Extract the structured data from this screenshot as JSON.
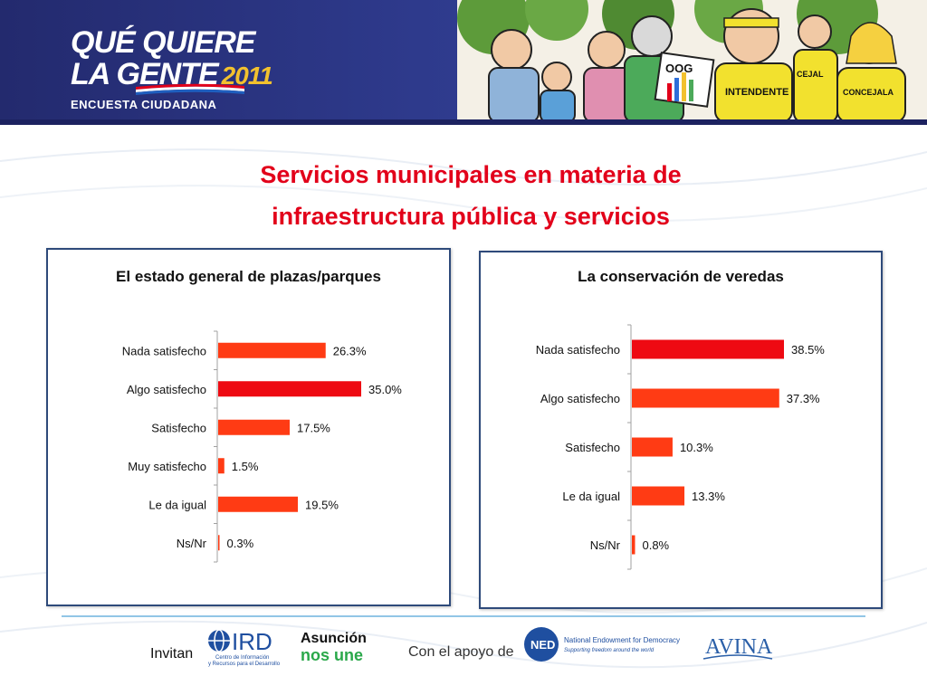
{
  "header": {
    "brand_line1": "QUÉ QUIERE",
    "brand_line2": "LA GENTE",
    "brand_year": "2011",
    "brand_sub": "ENCUESTA CIUDADANA",
    "cartoon_sign1": "OOG",
    "cartoon_sign2": "INTENDENTE",
    "cartoon_sign3": "CONCEJALA",
    "cartoon_sign4": "CEJAL"
  },
  "slide_title_line1": "Servicios municipales en materia de",
  "slide_title_line2": "infraestructura pública y servicios",
  "chart_data": [
    {
      "type": "bar",
      "orientation": "horizontal",
      "title": "El estado general de plazas/parques",
      "categories": [
        "Nada satisfecho",
        "Algo satisfecho",
        "Satisfecho",
        "Muy satisfecho",
        "Le da igual",
        "Ns/Nr"
      ],
      "values": [
        26.3,
        35.0,
        17.5,
        1.5,
        19.5,
        0.3
      ],
      "labels": [
        "26.3%",
        "35.0%",
        "17.5%",
        "1.5%",
        "19.5%",
        "0.3%"
      ],
      "highlight_index": 1,
      "xlim": [
        0,
        35
      ]
    },
    {
      "type": "bar",
      "orientation": "horizontal",
      "title": "La conservación de veredas",
      "categories": [
        "Nada satisfecho",
        "Algo satisfecho",
        "Satisfecho",
        "Le da igual",
        "Ns/Nr"
      ],
      "values": [
        38.5,
        37.3,
        10.3,
        13.3,
        0.8
      ],
      "labels": [
        "38.5%",
        "37.3%",
        "10.3%",
        "13.3%",
        "0.8%"
      ],
      "highlight_index": 0,
      "xlim": [
        0,
        38.5
      ]
    }
  ],
  "colors": {
    "bar": "#ff3b14",
    "bar_highlight": "#ee0a12",
    "title_red": "#e2001a",
    "panel_border": "#2e4a7a",
    "banner": "#2e3a8c"
  },
  "footer": {
    "invitan": "Invitan",
    "apoyo": "Con el apoyo de",
    "ird_logo": "IRD",
    "ird_caption1": "Centro de Información",
    "ird_caption2": "y Recursos para el Desarrollo",
    "asuncion_line1": "Asunción",
    "asuncion_line2": "nos une",
    "ned_logo": "NED",
    "ned_name": "National Endowment for Democracy",
    "ned_tagline": "Supporting freedom around the world",
    "avina_logo": "AVINA"
  }
}
